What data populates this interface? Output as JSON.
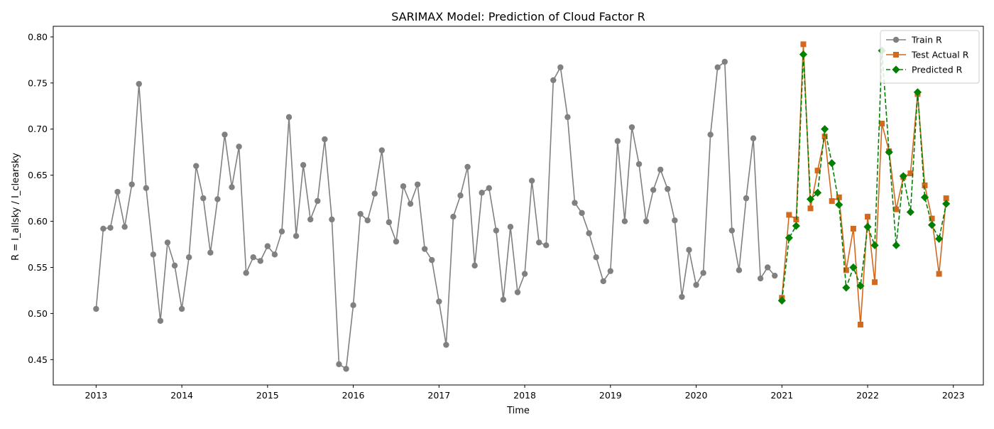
{
  "chart_data": {
    "type": "line",
    "title": "SARIMAX Model: Prediction of Cloud Factor R",
    "xlabel": "Time",
    "ylabel": "R = I_allsky / I_clearsky",
    "xlim": [
      2012.5,
      2023.35
    ],
    "ylim": [
      0.4225,
      0.8115
    ],
    "x_ticks": [
      2013,
      2014,
      2015,
      2016,
      2017,
      2018,
      2019,
      2020,
      2021,
      2022,
      2023
    ],
    "x_tick_labels": [
      "2013",
      "2014",
      "2015",
      "2016",
      "2017",
      "2018",
      "2019",
      "2020",
      "2021",
      "2022",
      "2023"
    ],
    "y_ticks": [
      0.45,
      0.5,
      0.55,
      0.6,
      0.65,
      0.7,
      0.75,
      0.8
    ],
    "y_tick_labels": [
      "0.45",
      "0.50",
      "0.55",
      "0.60",
      "0.65",
      "0.70",
      "0.75",
      "0.80"
    ],
    "grid": false,
    "legend_position": "top-right",
    "series": [
      {
        "name": "Train R",
        "color": "#808080",
        "marker": "circle",
        "linestyle": "solid",
        "start": "2013-01",
        "frequency": "monthly",
        "values": [
          0.505,
          0.592,
          0.593,
          0.632,
          0.594,
          0.64,
          0.749,
          0.636,
          0.564,
          0.492,
          0.577,
          0.552,
          0.505,
          0.561,
          0.66,
          0.625,
          0.566,
          0.624,
          0.694,
          0.637,
          0.681,
          0.544,
          0.561,
          0.557,
          0.573,
          0.564,
          0.589,
          0.713,
          0.584,
          0.661,
          0.602,
          0.622,
          0.689,
          0.602,
          0.445,
          0.44,
          0.509,
          0.608,
          0.601,
          0.63,
          0.677,
          0.599,
          0.578,
          0.638,
          0.619,
          0.64,
          0.57,
          0.558,
          0.513,
          0.466,
          0.605,
          0.628,
          0.659,
          0.552,
          0.631,
          0.636,
          0.59,
          0.515,
          0.594,
          0.523,
          0.543,
          0.644,
          0.577,
          0.574,
          0.753,
          0.767,
          0.713,
          0.62,
          0.609,
          0.587,
          0.561,
          0.535,
          0.546,
          0.687,
          0.6,
          0.702,
          0.662,
          0.6,
          0.634,
          0.656,
          0.635,
          0.601,
          0.518,
          0.569,
          0.531,
          0.544,
          0.694,
          0.767,
          0.773,
          0.59,
          0.547,
          0.625,
          0.69,
          0.538,
          0.55,
          0.541
        ]
      },
      {
        "name": "Test Actual R",
        "color": "#d2691e",
        "marker": "square",
        "linestyle": "solid",
        "start": "2021-01",
        "frequency": "monthly",
        "values": [
          0.517,
          0.607,
          0.602,
          0.792,
          0.614,
          0.655,
          0.692,
          0.622,
          0.626,
          0.547,
          0.592,
          0.488,
          0.605,
          0.534,
          0.706,
          0.676,
          0.613,
          0.648,
          0.652,
          0.738,
          0.639,
          0.603,
          0.543,
          0.625
        ]
      },
      {
        "name": "Predicted R",
        "color": "#008000",
        "marker": "diamond",
        "linestyle": "dashed",
        "start": "2021-01",
        "frequency": "monthly",
        "values": [
          0.514,
          0.582,
          0.595,
          0.781,
          0.624,
          0.631,
          0.7,
          0.663,
          0.618,
          0.528,
          0.55,
          0.53,
          0.594,
          0.574,
          0.785,
          0.675,
          0.574,
          0.649,
          0.61,
          0.74,
          0.626,
          0.596,
          0.581,
          0.619
        ]
      }
    ]
  }
}
